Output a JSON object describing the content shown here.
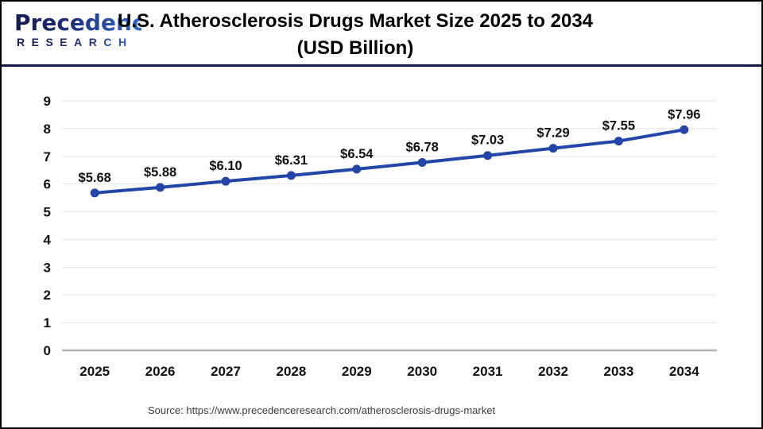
{
  "header": {
    "logo_line1": "Precedence",
    "logo_line2": "RESEARCH",
    "title_line1": "U.S. Atherosclerosis Drugs Market Size 2025 to 2034",
    "title_line2": "(USD Billion)"
  },
  "footer": {
    "source": "Source: https://www.precedenceresearch.com/atherosclerosis-drugs-market"
  },
  "colors": {
    "line": "#2145a8",
    "marker": "#2145a8",
    "grid": "#ebebeb",
    "axis_zero": "#b0b0b0",
    "tick_label": "#111111",
    "data_label": "#111111",
    "divider_navy": "#10174a",
    "logo_dark": "#131c52",
    "logo_light": "#2e6bd6"
  },
  "chart_data": {
    "type": "line",
    "title": "U.S. Atherosclerosis Drugs Market Size 2025 to 2034 (USD Billion)",
    "categories": [
      "2025",
      "2026",
      "2027",
      "2028",
      "2029",
      "2030",
      "2031",
      "2032",
      "2033",
      "2034"
    ],
    "values": [
      5.68,
      5.88,
      6.1,
      6.31,
      6.54,
      6.78,
      7.03,
      7.29,
      7.55,
      7.96
    ],
    "data_labels": [
      "$5.68",
      "$5.88",
      "$6.10",
      "$6.31",
      "$6.54",
      "$6.78",
      "$7.03",
      "$7.29",
      "$7.55",
      "$7.96"
    ],
    "xlabel": "",
    "ylabel": "",
    "ylim": [
      0,
      9
    ],
    "y_ticks": [
      0,
      1,
      2,
      3,
      4,
      5,
      6,
      7,
      8,
      9
    ],
    "grid": true,
    "legend_position": "none"
  }
}
